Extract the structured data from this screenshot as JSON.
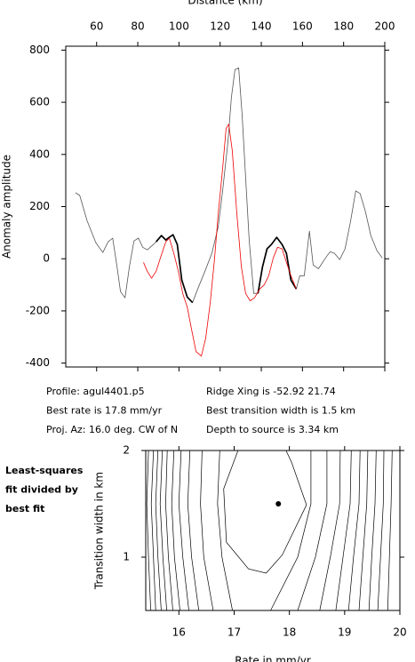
{
  "chart_data": [
    {
      "type": "line",
      "x_label": "Distance (km)",
      "y_label": "Anomaly amplitude",
      "xlim": [
        45,
        200
      ],
      "ylim": [
        -415,
        815
      ],
      "xticks": [
        60,
        80,
        100,
        120,
        140,
        160,
        180,
        200
      ],
      "yticks": [
        -400,
        -200,
        0,
        200,
        400,
        600,
        800
      ],
      "series": [
        {
          "color": "#555555",
          "x": [
            49.7,
            51.8,
            55.3,
            59.6,
            63.0,
            65.6,
            67.8,
            69.9,
            71.6,
            73.8,
            75.9,
            78.1,
            80.3,
            82.4,
            84.6,
            87.6,
            88.9,
            91.5,
            93.6,
            95.3,
            97.1,
            99.2,
            101.4,
            104.0,
            106.6,
            109.1,
            112.6,
            116.0,
            119.1,
            121.2,
            123.8,
            125.5,
            127.2,
            129.0,
            130.7,
            132.4,
            134.1,
            136.3,
            138.4,
            140.6,
            142.8,
            144.9,
            147.5,
            150.1,
            152.2,
            154.4,
            157.0,
            158.7,
            160.9,
            163.4,
            165.2,
            167.8,
            171.2,
            173.4,
            175.5,
            178.1,
            180.7,
            183.3,
            185.9,
            188.0,
            190.6,
            193.2,
            196.2,
            198.8
          ],
          "values": [
            253,
            243,
            147,
            62,
            24,
            65,
            79,
            -31,
            -126,
            -150,
            -31,
            68,
            79,
            44,
            34,
            55,
            65,
            89,
            72,
            82,
            92,
            55,
            -82,
            -147,
            -168,
            -116,
            -48,
            21,
            123,
            260,
            448,
            619,
            725,
            732,
            550,
            311,
            72,
            -133,
            -133,
            -31,
            38,
            55,
            82,
            55,
            21,
            -82,
            -116,
            -65,
            -65,
            106,
            -24,
            -38,
            3,
            27,
            21,
            -3,
            38,
            140,
            260,
            250,
            181,
            89,
            31,
            3
          ]
        },
        {
          "color": "#000000",
          "x": [
            88.9,
            91.5,
            93.6,
            95.3,
            97.1,
            99.2,
            101.4,
            104.0,
            106.6,
            null,
            138.4,
            140.6,
            142.8,
            144.9,
            147.5,
            150.1,
            152.2,
            154.4,
            157.0
          ],
          "values": [
            65,
            89,
            72,
            82,
            92,
            55,
            -82,
            -147,
            -168,
            null,
            -133,
            -31,
            38,
            55,
            82,
            55,
            21,
            -82,
            -116
          ]
        },
        {
          "color": "#ee0000",
          "x": [
            82.8,
            84.6,
            86.7,
            88.9,
            91.0,
            93.6,
            95.3,
            97.5,
            99.7,
            101.8,
            104.0,
            106.1,
            108.3,
            110.9,
            113.0,
            115.2,
            117.3,
            119.1,
            121.2,
            122.9,
            124.2,
            125.9,
            128.1,
            130.3,
            132.4,
            134.6,
            136.7,
            139.3,
            141.5,
            143.6,
            145.8,
            147.9,
            150.1,
            152.2,
            154.4,
            157.0
          ],
          "values": [
            -14,
            -48,
            -75,
            -48,
            3,
            65,
            79,
            21,
            -48,
            -133,
            -185,
            -270,
            -356,
            -373,
            -304,
            -168,
            3,
            174,
            345,
            499,
            516,
            414,
            174,
            -31,
            -133,
            -161,
            -150,
            -116,
            -99,
            -65,
            3,
            44,
            38,
            -14,
            -65,
            -116
          ]
        }
      ]
    },
    {
      "type": "contour",
      "x_label": "Rate in mm/yr",
      "y_label": "Transition width in km",
      "xlim": [
        15.4,
        20
      ],
      "ylim": [
        0.5,
        2
      ],
      "xticks": [
        16,
        17,
        18,
        19,
        20
      ],
      "yticks": [
        1,
        2
      ],
      "best_point": {
        "x": 17.8,
        "y": 1.5
      },
      "contours": [
        {
          "x": [
            15.45,
            15.42,
            15.45,
            15.49
          ],
          "y": [
            2,
            1.5,
            1,
            0.5
          ]
        },
        {
          "x": [
            15.54,
            15.5,
            15.54,
            15.58
          ],
          "y": [
            2,
            1.5,
            1,
            0.5
          ]
        },
        {
          "x": [
            15.62,
            15.58,
            15.62,
            15.68
          ],
          "y": [
            2,
            1.5,
            1,
            0.5
          ]
        },
        {
          "x": [
            15.7,
            15.66,
            15.71,
            15.78
          ],
          "y": [
            2,
            1.5,
            1,
            0.5
          ]
        },
        {
          "x": [
            15.79,
            15.76,
            15.81,
            15.89
          ],
          "y": [
            2,
            1.5,
            1,
            0.5
          ]
        },
        {
          "x": [
            15.91,
            15.87,
            15.92,
            16.02
          ],
          "y": [
            2,
            1.5,
            1,
            0.5
          ]
        },
        {
          "x": [
            16.04,
            16.0,
            16.07,
            16.18
          ],
          "y": [
            2,
            1.5,
            1,
            0.5
          ]
        },
        {
          "x": [
            16.2,
            16.16,
            16.23,
            16.36
          ],
          "y": [
            2,
            1.5,
            1,
            0.5
          ]
        },
        {
          "x": [
            16.42,
            16.39,
            16.45,
            16.62
          ],
          "y": [
            2,
            1.5,
            1,
            0.5
          ]
        },
        {
          "x": [
            16.74,
            16.7,
            16.78,
            16.97
          ],
          "y": [
            2,
            1.5,
            1,
            0.5
          ]
        },
        {
          "x": [
            17.07,
            16.81,
            16.86,
            17.26,
            17.58,
            17.87,
            18.31,
            18.04,
            17.94
          ],
          "y": [
            2,
            1.64,
            1.14,
            0.89,
            0.85,
            1.02,
            1.49,
            1.89,
            2
          ]
        },
        {
          "x": [
            18.39,
            18.39,
            18.15,
            17.66
          ],
          "y": [
            2,
            1.5,
            1,
            0.5
          ]
        },
        {
          "x": [
            18.68,
            18.68,
            18.47,
            18.15
          ],
          "y": [
            2,
            1.5,
            1,
            0.5
          ]
        },
        {
          "x": [
            18.92,
            18.91,
            18.74,
            18.55
          ],
          "y": [
            2,
            1.5,
            1,
            0.5
          ]
        },
        {
          "x": [
            19.12,
            19.1,
            18.97,
            18.84
          ],
          "y": [
            2,
            1.5,
            1,
            0.5
          ]
        },
        {
          "x": [
            19.28,
            19.26,
            19.16,
            19.07
          ],
          "y": [
            2,
            1.5,
            1,
            0.5
          ]
        },
        {
          "x": [
            19.42,
            19.4,
            19.33,
            19.26
          ],
          "y": [
            2,
            1.5,
            1,
            0.5
          ]
        },
        {
          "x": [
            19.57,
            19.55,
            19.49,
            19.44
          ],
          "y": [
            2,
            1.5,
            1,
            0.5
          ]
        },
        {
          "x": [
            19.71,
            19.7,
            19.65,
            19.6
          ],
          "y": [
            2,
            1.5,
            1,
            0.5
          ]
        },
        {
          "x": [
            19.86,
            19.84,
            19.81,
            19.78
          ],
          "y": [
            2,
            1.5,
            1,
            0.5
          ]
        }
      ]
    }
  ],
  "profile_info": [
    "Profile: agul4401.p5",
    "Ridge Xing is -52.92 21.74",
    "Best rate is 17.8 mm/yr",
    "Best transition width is 1.5 km",
    "Proj. Az: 16.0 deg. CW of N",
    "Depth to source is   3.34 km"
  ],
  "side_label": [
    "Least-squares",
    "fit divided by",
    "best fit"
  ]
}
